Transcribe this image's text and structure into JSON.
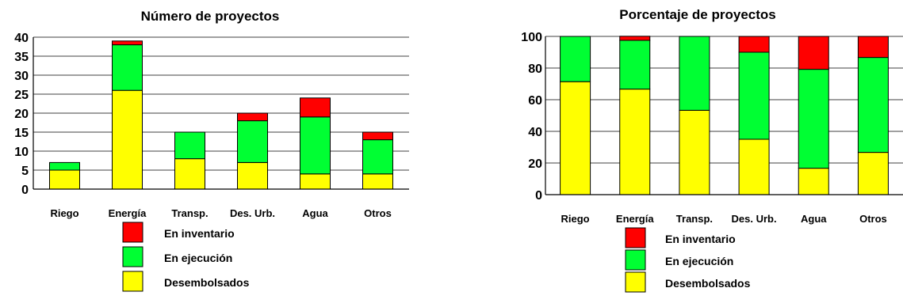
{
  "colors": {
    "inventario": "#ff0000",
    "ejecucion": "#00ff33",
    "desembolsados": "#ffff00"
  },
  "chart_data": [
    {
      "type": "bar",
      "stacked": true,
      "title": "Número de proyectos",
      "categories": [
        "Riego",
        "Energía",
        "Transp.",
        "Des. Urb.",
        "Agua",
        "Otros"
      ],
      "ylim": [
        0,
        40
      ],
      "yticks": [
        0,
        5,
        10,
        15,
        20,
        25,
        30,
        35,
        40
      ],
      "grid": true,
      "legend_position": "bottom",
      "series": [
        {
          "name": "Desembolsados",
          "color": "#ffff00",
          "values": [
            5,
            26,
            8,
            7,
            4,
            4
          ]
        },
        {
          "name": "En ejecución",
          "color": "#00ff33",
          "values": [
            2,
            12,
            7,
            11,
            15,
            9
          ]
        },
        {
          "name": "En inventario",
          "color": "#ff0000",
          "values": [
            0,
            1,
            0,
            2,
            5,
            2
          ]
        }
      ]
    },
    {
      "type": "bar",
      "stacked": true,
      "title": "Porcentaje de proyectos",
      "categories": [
        "Riego",
        "Energía",
        "Transp.",
        "Des. Urb.",
        "Agua",
        "Otros"
      ],
      "ylim": [
        0,
        100
      ],
      "yticks": [
        0,
        20,
        40,
        60,
        80,
        100
      ],
      "grid": true,
      "legend_position": "bottom",
      "series": [
        {
          "name": "Desembolsados",
          "color": "#ffff00",
          "values": [
            71.4,
            66.7,
            53.3,
            35.0,
            16.7,
            26.7
          ]
        },
        {
          "name": "En ejecución",
          "color": "#00ff33",
          "values": [
            28.6,
            30.8,
            46.7,
            55.0,
            62.5,
            60.0
          ]
        },
        {
          "name": "En inventario",
          "color": "#ff0000",
          "values": [
            0,
            2.6,
            0,
            10.0,
            20.8,
            13.3
          ]
        }
      ]
    }
  ],
  "legend": [
    {
      "label": "En inventario",
      "color": "#ff0000"
    },
    {
      "label": "En ejecución",
      "color": "#00ff33"
    },
    {
      "label": "Desembolsados",
      "color": "#ffff00"
    }
  ]
}
